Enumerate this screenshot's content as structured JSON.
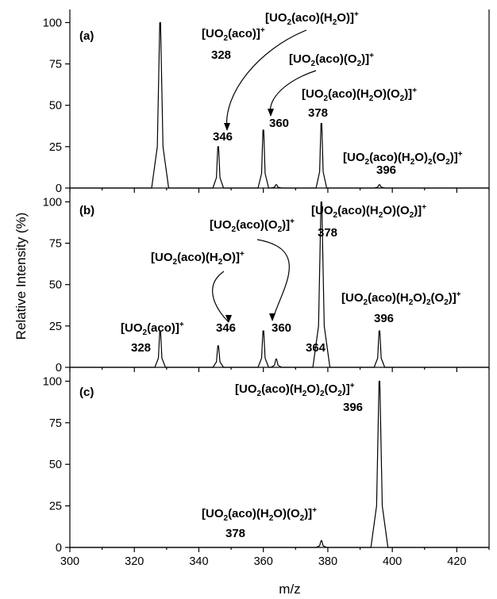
{
  "chart_data": {
    "type": "line",
    "xlabel": "m/z",
    "ylabel": "Relative Intensity (%)",
    "xlim": [
      300,
      430
    ],
    "ylim": [
      0,
      105
    ],
    "xticks": [
      "300",
      "320",
      "340",
      "360",
      "380",
      "400",
      "420"
    ],
    "yticks": [
      "0",
      "25",
      "50",
      "75",
      "100"
    ],
    "grid": false,
    "panels": [
      {
        "label": "(a)",
        "peaks": [
          {
            "x": 328,
            "y": 100
          },
          {
            "x": 346,
            "y": 25
          },
          {
            "x": 360,
            "y": 35
          },
          {
            "x": 364,
            "y": 2
          },
          {
            "x": 378,
            "y": 39
          },
          {
            "x": 396,
            "y": 2
          }
        ],
        "annotations": [
          {
            "ion_html": "[UO<tspan font-size=\"10\" dy=\"4\">2</tspan><tspan dy=\"-4\">(aco)]</tspan><tspan font-size=\"10\" dy=\"-6\">+</tspan>",
            "mz": "328"
          },
          {
            "ion_html": "[UO<tspan font-size=\"10\" dy=\"4\">2</tspan><tspan dy=\"-4\">(aco)(H</tspan><tspan font-size=\"10\" dy=\"4\">2</tspan><tspan dy=\"-4\">O)]</tspan><tspan font-size=\"10\" dy=\"-6\">+</tspan>",
            "mz": "346"
          },
          {
            "ion_html": "[UO<tspan font-size=\"10\" dy=\"4\">2</tspan><tspan dy=\"-4\">(aco)(O</tspan><tspan font-size=\"10\" dy=\"4\">2</tspan><tspan dy=\"-4\">)]</tspan><tspan font-size=\"10\" dy=\"-6\">+</tspan>",
            "mz": "360"
          },
          {
            "ion_html": "[UO<tspan font-size=\"10\" dy=\"4\">2</tspan><tspan dy=\"-4\">(aco)(H</tspan><tspan font-size=\"10\" dy=\"4\">2</tspan><tspan dy=\"-4\">O)(O</tspan><tspan font-size=\"10\" dy=\"4\">2</tspan><tspan dy=\"-4\">)]</tspan><tspan font-size=\"10\" dy=\"-6\">+</tspan>",
            "mz": "378"
          },
          {
            "ion_html": "[UO<tspan font-size=\"10\" dy=\"4\">2</tspan><tspan dy=\"-4\">(aco)(H</tspan><tspan font-size=\"10\" dy=\"4\">2</tspan><tspan dy=\"-4\">O)</tspan><tspan font-size=\"10\" dy=\"4\">2</tspan><tspan dy=\"-4\">(O</tspan><tspan font-size=\"10\" dy=\"4\">2</tspan><tspan dy=\"-4\">)]</tspan><tspan font-size=\"10\" dy=\"-6\">+</tspan>",
            "mz": "396"
          }
        ]
      },
      {
        "label": "(b)",
        "peaks": [
          {
            "x": 328,
            "y": 22
          },
          {
            "x": 346,
            "y": 13
          },
          {
            "x": 360,
            "y": 22
          },
          {
            "x": 364,
            "y": 5
          },
          {
            "x": 378,
            "y": 100
          },
          {
            "x": 396,
            "y": 22
          }
        ],
        "annotations": [
          {
            "ion_html": "[UO<tspan font-size=\"10\" dy=\"4\">2</tspan><tspan dy=\"-4\">(aco)]</tspan><tspan font-size=\"10\" dy=\"-6\">+</tspan>",
            "mz": "328"
          },
          {
            "ion_html": "[UO<tspan font-size=\"10\" dy=\"4\">2</tspan><tspan dy=\"-4\">(aco)(H</tspan><tspan font-size=\"10\" dy=\"4\">2</tspan><tspan dy=\"-4\">O)]</tspan><tspan font-size=\"10\" dy=\"-6\">+</tspan>",
            "mz": "346"
          },
          {
            "ion_html": "[UO<tspan font-size=\"10\" dy=\"4\">2</tspan><tspan dy=\"-4\">(aco)(O</tspan><tspan font-size=\"10\" dy=\"4\">2</tspan><tspan dy=\"-4\">)]</tspan><tspan font-size=\"10\" dy=\"-6\">+</tspan>",
            "mz": "360"
          },
          {
            "ion_html": "",
            "mz": "364"
          },
          {
            "ion_html": "[UO<tspan font-size=\"10\" dy=\"4\">2</tspan><tspan dy=\"-4\">(aco)(H</tspan><tspan font-size=\"10\" dy=\"4\">2</tspan><tspan dy=\"-4\">O)(O</tspan><tspan font-size=\"10\" dy=\"4\">2</tspan><tspan dy=\"-4\">)]</tspan><tspan font-size=\"10\" dy=\"-6\">+</tspan>",
            "mz": "378"
          },
          {
            "ion_html": "[UO<tspan font-size=\"10\" dy=\"4\">2</tspan><tspan dy=\"-4\">(aco)(H</tspan><tspan font-size=\"10\" dy=\"4\">2</tspan><tspan dy=\"-4\">O)</tspan><tspan font-size=\"10\" dy=\"4\">2</tspan><tspan dy=\"-4\">(O</tspan><tspan font-size=\"10\" dy=\"4\">2</tspan><tspan dy=\"-4\">)]</tspan><tspan font-size=\"10\" dy=\"-6\">+</tspan>",
            "mz": "396"
          }
        ]
      },
      {
        "label": "(c)",
        "peaks": [
          {
            "x": 378,
            "y": 4
          },
          {
            "x": 396,
            "y": 100
          }
        ],
        "annotations": [
          {
            "ion_html": "[UO<tspan font-size=\"10\" dy=\"4\">2</tspan><tspan dy=\"-4\">(aco)(H</tspan><tspan font-size=\"10\" dy=\"4\">2</tspan><tspan dy=\"-4\">O)(O</tspan><tspan font-size=\"10\" dy=\"4\">2</tspan><tspan dy=\"-4\">)]</tspan><tspan font-size=\"10\" dy=\"-6\">+</tspan>",
            "mz": "378"
          },
          {
            "ion_html": "[UO<tspan font-size=\"10\" dy=\"4\">2</tspan><tspan dy=\"-4\">(aco)(H</tspan><tspan font-size=\"10\" dy=\"4\">2</tspan><tspan dy=\"-4\">O)</tspan><tspan font-size=\"10\" dy=\"4\">2</tspan><tspan dy=\"-4\">(O</tspan><tspan font-size=\"10\" dy=\"4\">2</tspan><tspan dy=\"-4\">)]</tspan><tspan font-size=\"10\" dy=\"-6\">+</tspan>",
            "mz": "396"
          }
        ]
      }
    ]
  }
}
